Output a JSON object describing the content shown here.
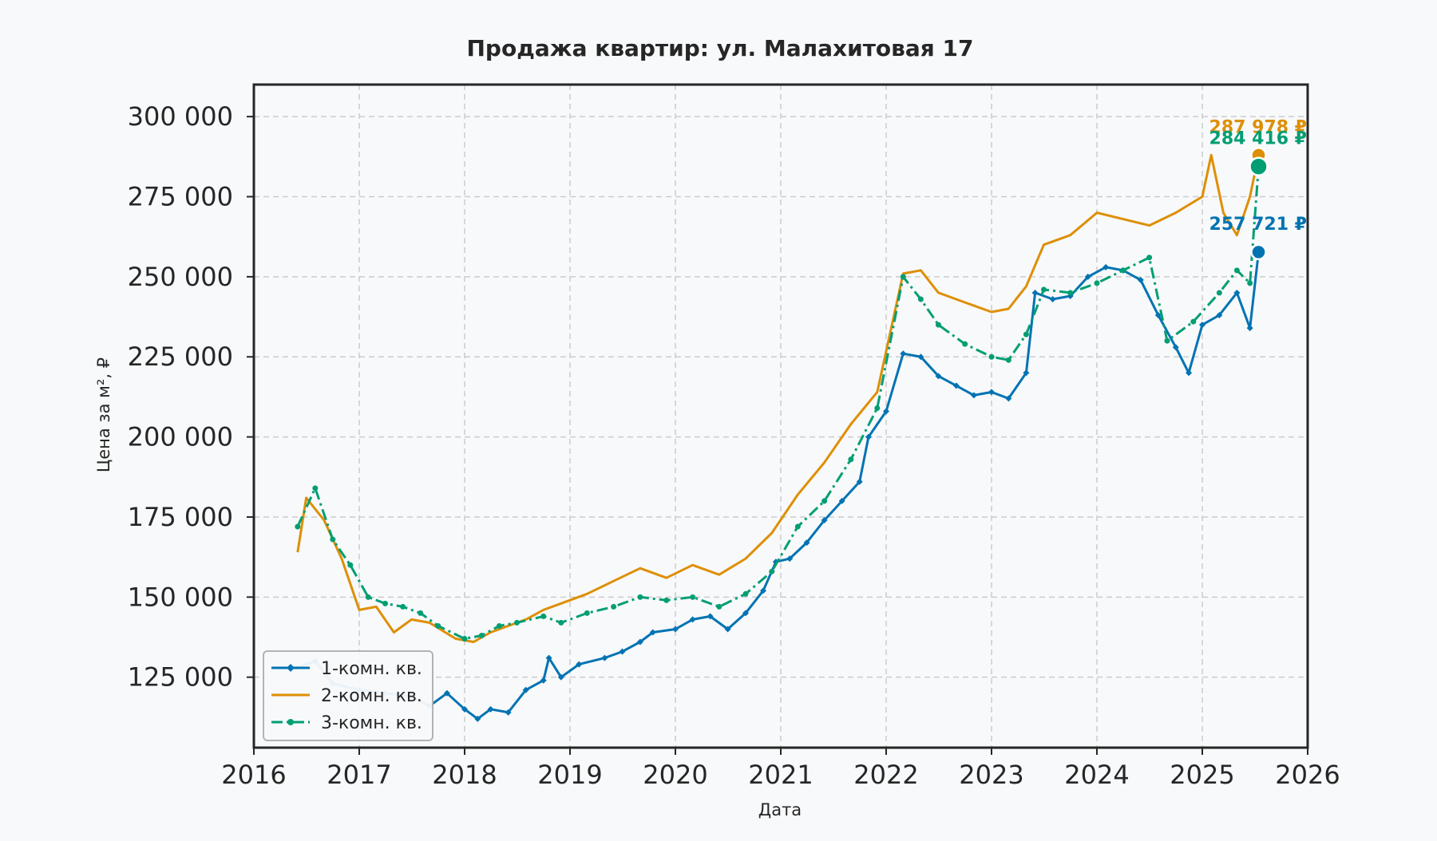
{
  "chart_data": {
    "type": "line",
    "title": "Продажа квартир: ул. Малахитовая 17",
    "xlabel": "Дата",
    "ylabel": "Цена за м², ₽",
    "xlim": [
      "2016-01-01",
      "2026-01-01"
    ],
    "ylim": [
      103000,
      310000
    ],
    "x_ticks": [
      "2016",
      "2017",
      "2018",
      "2019",
      "2020",
      "2021",
      "2022",
      "2023",
      "2024",
      "2025",
      "2026"
    ],
    "y_ticks": [
      125000,
      150000,
      175000,
      200000,
      225000,
      250000,
      275000,
      300000
    ],
    "y_tick_labels": [
      "125 000",
      "150 000",
      "175 000",
      "200 000",
      "225 000",
      "250 000",
      "275 000",
      "300 000"
    ],
    "grid": true,
    "legend": "lower-left",
    "series": [
      {
        "name": "1-комн. кв.",
        "color": "#0173b2",
        "marker": "diamond",
        "points": [
          [
            "2016-06-01",
            128000
          ],
          [
            "2016-08-01",
            130000
          ],
          [
            "2016-10-01",
            123000
          ],
          [
            "2017-01-01",
            121000
          ],
          [
            "2017-04-01",
            120000
          ],
          [
            "2017-07-01",
            119000
          ],
          [
            "2017-09-01",
            116000
          ],
          [
            "2017-11-01",
            120000
          ],
          [
            "2018-01-01",
            115000
          ],
          [
            "2018-02-15",
            112000
          ],
          [
            "2018-04-01",
            115000
          ],
          [
            "2018-06-01",
            114000
          ],
          [
            "2018-08-01",
            121000
          ],
          [
            "2018-10-01",
            124000
          ],
          [
            "2018-10-20",
            131000
          ],
          [
            "2018-12-01",
            125000
          ],
          [
            "2019-02-01",
            129000
          ],
          [
            "2019-05-01",
            131000
          ],
          [
            "2019-07-01",
            133000
          ],
          [
            "2019-09-01",
            136000
          ],
          [
            "2019-10-15",
            139000
          ],
          [
            "2020-01-01",
            140000
          ],
          [
            "2020-03-01",
            143000
          ],
          [
            "2020-05-01",
            144000
          ],
          [
            "2020-07-01",
            140000
          ],
          [
            "2020-09-01",
            145000
          ],
          [
            "2020-11-01",
            152000
          ],
          [
            "2020-12-15",
            161000
          ],
          [
            "2021-02-01",
            162000
          ],
          [
            "2021-04-01",
            167000
          ],
          [
            "2021-06-01",
            174000
          ],
          [
            "2021-08-01",
            180000
          ],
          [
            "2021-10-01",
            186000
          ],
          [
            "2021-11-01",
            200000
          ],
          [
            "2022-01-01",
            208000
          ],
          [
            "2022-03-01",
            226000
          ],
          [
            "2022-05-01",
            225000
          ],
          [
            "2022-07-01",
            219000
          ],
          [
            "2022-09-01",
            216000
          ],
          [
            "2022-11-01",
            213000
          ],
          [
            "2023-01-01",
            214000
          ],
          [
            "2023-03-01",
            212000
          ],
          [
            "2023-05-01",
            220000
          ],
          [
            "2023-06-01",
            245000
          ],
          [
            "2023-08-01",
            243000
          ],
          [
            "2023-10-01",
            244000
          ],
          [
            "2023-12-01",
            250000
          ],
          [
            "2024-02-01",
            253000
          ],
          [
            "2024-04-01",
            252000
          ],
          [
            "2024-06-01",
            249000
          ],
          [
            "2024-08-01",
            238000
          ],
          [
            "2024-10-01",
            228000
          ],
          [
            "2024-11-15",
            220000
          ],
          [
            "2025-01-01",
            235000
          ],
          [
            "2025-03-01",
            238000
          ],
          [
            "2025-05-01",
            245000
          ],
          [
            "2025-06-15",
            234000
          ],
          [
            "2025-07-15",
            257721
          ]
        ]
      },
      {
        "name": "2-комн. кв.",
        "color": "#de8f05",
        "marker": "none",
        "points": [
          [
            "2016-06-01",
            164000
          ],
          [
            "2016-07-01",
            181000
          ],
          [
            "2016-09-01",
            174000
          ],
          [
            "2016-11-01",
            162000
          ],
          [
            "2017-01-01",
            146000
          ],
          [
            "2017-03-01",
            147000
          ],
          [
            "2017-05-01",
            139000
          ],
          [
            "2017-07-01",
            143000
          ],
          [
            "2017-09-01",
            142000
          ],
          [
            "2017-12-01",
            137000
          ],
          [
            "2018-02-01",
            136000
          ],
          [
            "2018-04-01",
            139000
          ],
          [
            "2018-06-01",
            141000
          ],
          [
            "2018-08-01",
            143000
          ],
          [
            "2018-10-01",
            146000
          ],
          [
            "2018-12-01",
            148000
          ],
          [
            "2019-03-01",
            151000
          ],
          [
            "2019-06-01",
            155000
          ],
          [
            "2019-09-01",
            159000
          ],
          [
            "2019-12-01",
            156000
          ],
          [
            "2020-03-01",
            160000
          ],
          [
            "2020-06-01",
            157000
          ],
          [
            "2020-09-01",
            162000
          ],
          [
            "2020-12-01",
            170000
          ],
          [
            "2021-03-01",
            182000
          ],
          [
            "2021-06-01",
            192000
          ],
          [
            "2021-09-01",
            204000
          ],
          [
            "2021-12-01",
            214000
          ],
          [
            "2022-03-01",
            251000
          ],
          [
            "2022-05-01",
            252000
          ],
          [
            "2022-07-01",
            245000
          ],
          [
            "2022-10-01",
            242000
          ],
          [
            "2023-01-01",
            239000
          ],
          [
            "2023-03-01",
            240000
          ],
          [
            "2023-05-01",
            247000
          ],
          [
            "2023-07-01",
            260000
          ],
          [
            "2023-10-01",
            263000
          ],
          [
            "2024-01-01",
            270000
          ],
          [
            "2024-04-01",
            268000
          ],
          [
            "2024-07-01",
            266000
          ],
          [
            "2024-10-01",
            270000
          ],
          [
            "2025-01-01",
            275000
          ],
          [
            "2025-02-01",
            288000
          ],
          [
            "2025-03-15",
            270000
          ],
          [
            "2025-05-01",
            263000
          ],
          [
            "2025-06-15",
            275000
          ],
          [
            "2025-07-15",
            287978
          ]
        ]
      },
      {
        "name": "3-комн. кв.",
        "color": "#029e73",
        "marker": "circle",
        "points": [
          [
            "2016-06-01",
            172000
          ],
          [
            "2016-08-01",
            184000
          ],
          [
            "2016-10-01",
            168000
          ],
          [
            "2016-12-01",
            160000
          ],
          [
            "2017-02-01",
            150000
          ],
          [
            "2017-04-01",
            148000
          ],
          [
            "2017-06-01",
            147000
          ],
          [
            "2017-08-01",
            145000
          ],
          [
            "2017-10-01",
            141000
          ],
          [
            "2018-01-01",
            137000
          ],
          [
            "2018-03-01",
            138000
          ],
          [
            "2018-05-01",
            141000
          ],
          [
            "2018-07-01",
            142000
          ],
          [
            "2018-10-01",
            144000
          ],
          [
            "2018-12-01",
            142000
          ],
          [
            "2019-03-01",
            145000
          ],
          [
            "2019-06-01",
            147000
          ],
          [
            "2019-09-01",
            150000
          ],
          [
            "2019-12-01",
            149000
          ],
          [
            "2020-03-01",
            150000
          ],
          [
            "2020-06-01",
            147000
          ],
          [
            "2020-09-01",
            151000
          ],
          [
            "2020-12-01",
            158000
          ],
          [
            "2021-03-01",
            172000
          ],
          [
            "2021-06-01",
            180000
          ],
          [
            "2021-09-01",
            193000
          ],
          [
            "2021-12-01",
            209000
          ],
          [
            "2022-03-01",
            250000
          ],
          [
            "2022-05-01",
            243000
          ],
          [
            "2022-07-01",
            235000
          ],
          [
            "2022-10-01",
            229000
          ],
          [
            "2023-01-01",
            225000
          ],
          [
            "2023-03-01",
            224000
          ],
          [
            "2023-05-01",
            232000
          ],
          [
            "2023-07-01",
            246000
          ],
          [
            "2023-10-01",
            245000
          ],
          [
            "2024-01-01",
            248000
          ],
          [
            "2024-04-01",
            252000
          ],
          [
            "2024-07-01",
            256000
          ],
          [
            "2024-09-01",
            230000
          ],
          [
            "2024-12-01",
            236000
          ],
          [
            "2025-03-01",
            245000
          ],
          [
            "2025-05-01",
            252000
          ],
          [
            "2025-06-15",
            248000
          ],
          [
            "2025-07-15",
            284416
          ]
        ]
      }
    ],
    "annotations": [
      {
        "series": "1-комн. кв.",
        "x": "2025-07-15",
        "y": 257721,
        "text": "257 721 ₽",
        "color": "#0173b2"
      },
      {
        "series": "2-комн. кв.",
        "x": "2025-07-15",
        "y": 287978,
        "text": "287 978 ₽",
        "color": "#de8f05"
      },
      {
        "series": "3-комн. кв.",
        "x": "2025-07-15",
        "y": 284416,
        "text": "284 416 ₽",
        "color": "#029e73"
      }
    ]
  }
}
